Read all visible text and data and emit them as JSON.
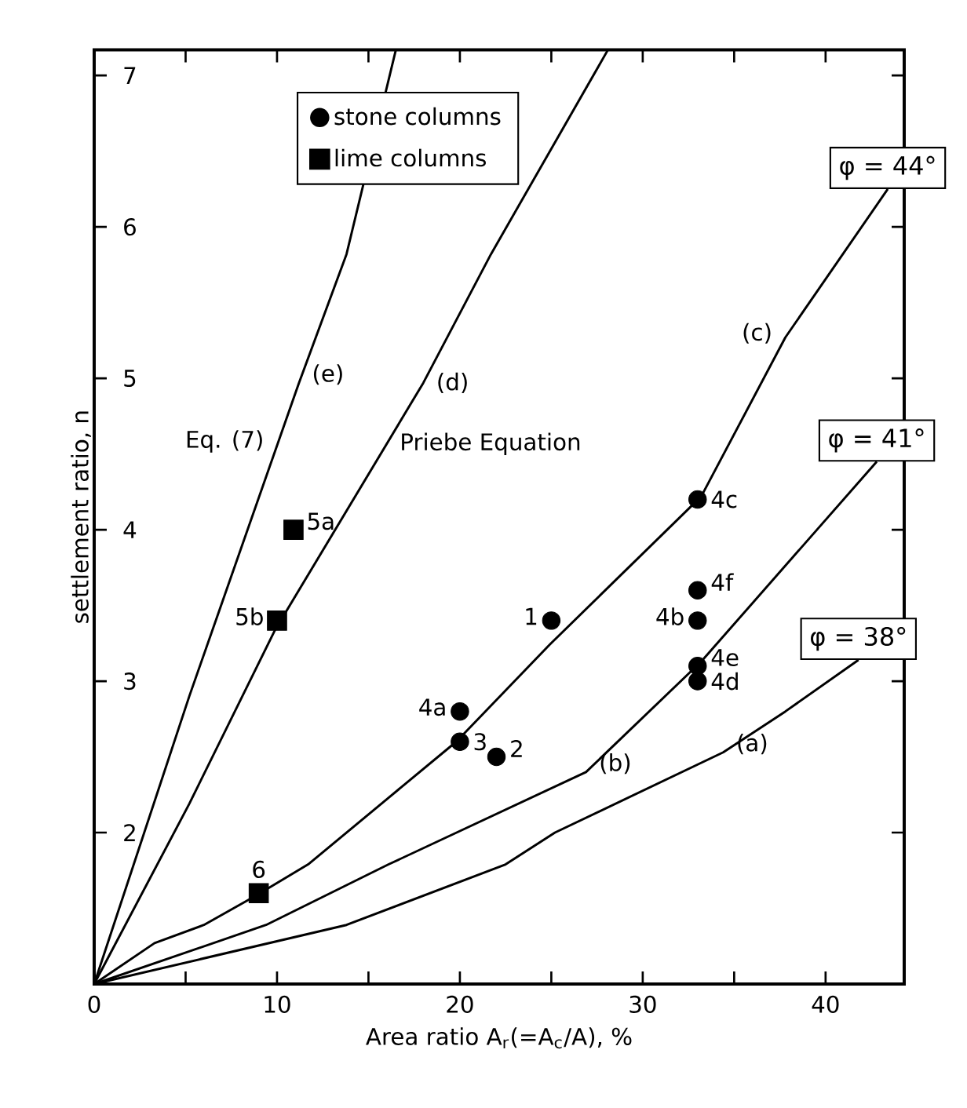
{
  "chart_data": {
    "type": "line",
    "xlabel": "Area ratio A$_{r}$(=A$_{c}$/A), %",
    "ylabel": "settlement ratio, n",
    "xlim": [
      0,
      44.3
    ],
    "ylim": [
      1,
      7.17
    ],
    "xticks": [
      0,
      {
        "value": 5,
        "label": null
      },
      10,
      {
        "value": 15,
        "label": null
      },
      20,
      {
        "value": 25,
        "label": null
      },
      30,
      {
        "value": 35,
        "label": null
      },
      40
    ],
    "yticks": [
      2,
      3,
      4,
      5,
      6,
      7
    ],
    "legend": "top left",
    "series": [
      {
        "color": "#000000",
        "name": "φ = 38°",
        "x": [
          0,
          13.8,
          22.5,
          25.2,
          34.4,
          37.8,
          41.8
        ],
        "values": [
          1,
          1.39,
          1.79,
          2.0,
          2.53,
          2.8,
          3.14
        ]
      },
      {
        "color": "#000000",
        "name": "φ = 41°",
        "x": [
          0,
          9.4,
          16.1,
          26.9,
          33.2,
          42.8
        ],
        "values": [
          1,
          1.39,
          1.79,
          2.4,
          3.13,
          4.45
        ]
      },
      {
        "color": "#000000",
        "name": "φ = 44°",
        "x": [
          0,
          3.3,
          6.0,
          8.8,
          11.7,
          19.8,
          24.9,
          33.2,
          37.8,
          43.4
        ],
        "values": [
          1,
          1.27,
          1.39,
          1.58,
          1.79,
          2.6,
          3.24,
          4.22,
          5.27,
          6.25
        ]
      },
      {
        "color": "#000000",
        "x": [
          0,
          5.2,
          9.9,
          18.0,
          21.7,
          28.1
        ],
        "values": [
          1,
          2.19,
          3.34,
          4.97,
          5.82,
          7.17
        ]
      },
      {
        "color": "#000000",
        "x": [
          0,
          5.2,
          11.2,
          13.8,
          16.5
        ],
        "values": [
          1,
          2.9,
          4.97,
          5.82,
          7.17
        ]
      },
      {
        "type": "scatter",
        "name": "stone columns",
        "color": "#000000",
        "marker": "circle",
        "x": [
          25,
          22,
          20,
          20,
          33,
          33,
          33,
          33,
          33
        ],
        "values": [
          3.4,
          2.5,
          2.6,
          2.8,
          4.2,
          3.6,
          3.4,
          3.1,
          3.0
        ]
      },
      {
        "type": "scatter",
        "name": "lime columns",
        "color": "#000000",
        "marker": "square",
        "x": [
          10.9,
          10,
          9
        ],
        "values": [
          4.0,
          3.4,
          1.6
        ]
      }
    ],
    "annotations": [
      {
        "text": "(a)",
        "x": 34.4,
        "y": 2.53
      },
      {
        "text": "(b)",
        "x": 26.9,
        "y": 2.4
      },
      {
        "text": "(c)",
        "x": 37.8,
        "y": 5.27
      },
      {
        "text": "(d)",
        "x": 18.0,
        "y": 4.97
      },
      {
        "text": "Priebe Equation",
        "x": 16.0,
        "y": 4.567
      },
      {
        "text": "(e)",
        "x": 11.2,
        "y": 4.97
      },
      {
        "text": "Eq. (7)",
        "x": 10.0,
        "y": 4.556
      },
      {
        "text": "1",
        "x": 25,
        "y": 3.4
      },
      {
        "text": "2",
        "x": 22,
        "y": 2.5
      },
      {
        "text": "3",
        "x": 20,
        "y": 2.6
      },
      {
        "text": "4a",
        "x": 20,
        "y": 2.8
      },
      {
        "text": "4c",
        "x": 33,
        "y": 4.2
      },
      {
        "text": "4f",
        "x": 33,
        "y": 3.6
      },
      {
        "text": "4b",
        "x": 33,
        "y": 3.4
      },
      {
        "text": "4e",
        "x": 33,
        "y": 3.1
      },
      {
        "text": "4d",
        "x": 33,
        "y": 3.0
      },
      {
        "text": "5a",
        "x": 10.9,
        "y": 4.0
      },
      {
        "text": "5b",
        "x": 10,
        "y": 3.4
      },
      {
        "text": "6",
        "x": 9,
        "y": 1.6
      }
    ]
  }
}
